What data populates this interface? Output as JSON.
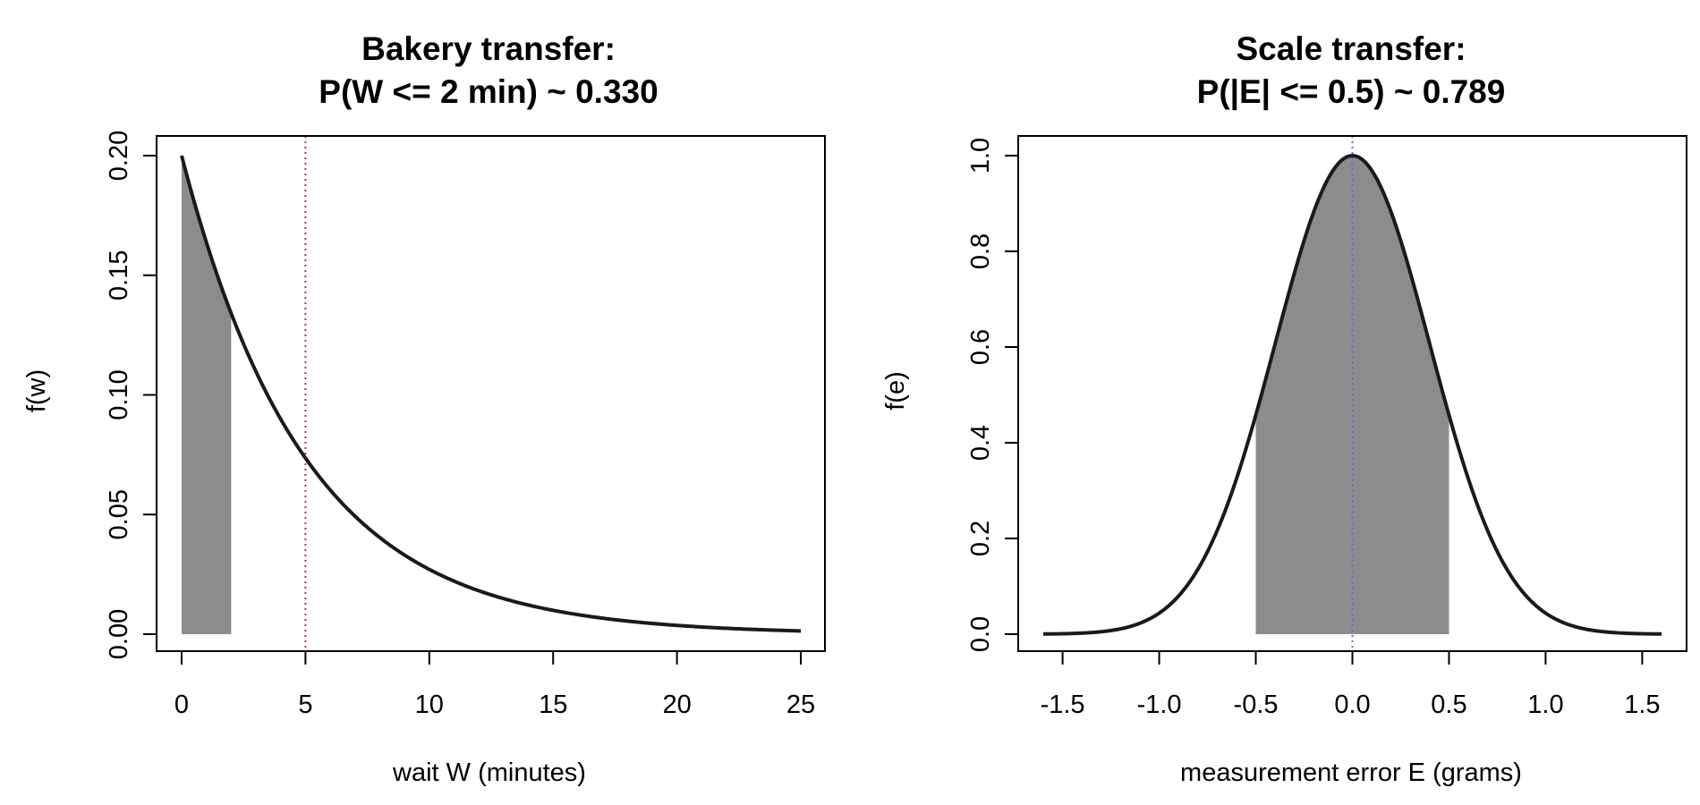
{
  "chart_data": [
    {
      "type": "area",
      "title_lines": [
        "Bakery transfer:",
        "P(W <= 2 min) ~ 0.330"
      ],
      "xlabel": "wait W (minutes)",
      "ylabel": "f(w)",
      "xlim": [
        0,
        25
      ],
      "ylim": [
        0,
        0.2
      ],
      "x_ticks": [
        "0",
        "5",
        "10",
        "15",
        "20",
        "25"
      ],
      "y_ticks": [
        "0.00",
        "0.05",
        "0.10",
        "0.15",
        "0.20"
      ],
      "curve": {
        "family": "exponential",
        "rate": 0.2,
        "x_range": [
          0,
          25
        ]
      },
      "shaded_interval": [
        0,
        2
      ],
      "reference_line": {
        "x": 5,
        "color": "#b03a2e",
        "style": "dotted"
      },
      "grid": false,
      "curve_color": "#1a1a1a",
      "shade_color": "#8c8c8c"
    },
    {
      "type": "area",
      "title_lines": [
        "Scale transfer:",
        "P(|E| <= 0.5) ~ 0.789"
      ],
      "xlabel": "measurement error E (grams)",
      "ylabel": "f(e)",
      "xlim": [
        -1.6,
        1.6
      ],
      "ylim": [
        0,
        1
      ],
      "x_ticks": [
        "-1.5",
        "-1.0",
        "-0.5",
        "0.0",
        "0.5",
        "1.0",
        "1.5"
      ],
      "y_ticks": [
        "0.0",
        "0.2",
        "0.4",
        "0.6",
        "0.8",
        "1.0"
      ],
      "curve": {
        "family": "normal",
        "mean": 0,
        "sd": 0.4,
        "scaled_peak": 1.0,
        "x_range": [
          -1.6,
          1.6
        ]
      },
      "shaded_interval": [
        -0.5,
        0.5
      ],
      "reference_line": {
        "x": 0,
        "color": "#4a7bb7",
        "style": "dotted"
      },
      "grid": false,
      "curve_color": "#1a1a1a",
      "shade_color": "#8c8c8c"
    }
  ]
}
